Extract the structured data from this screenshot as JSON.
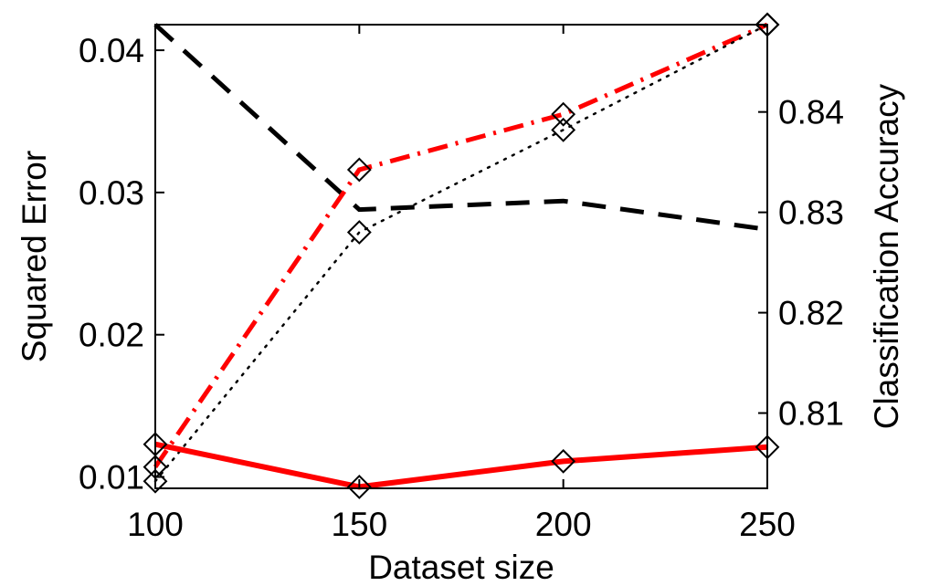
{
  "chart_data": {
    "type": "line",
    "title": "",
    "xlabel": "Dataset size",
    "ylabel_left": "Squared Error",
    "ylabel_right": "Classification Accuracy",
    "x": [
      100,
      150,
      200,
      250
    ],
    "xlim": [
      100,
      250
    ],
    "ylim_left": [
      0.0092,
      0.0418
    ],
    "ylim_right": [
      0.8025,
      0.8487
    ],
    "xticks": [
      "100",
      "150",
      "200",
      "250"
    ],
    "yticks_left": [
      "0.01",
      "0.02",
      "0.03",
      "0.04"
    ],
    "yticks_right": [
      "0.81",
      "0.82",
      "0.83",
      "0.84"
    ],
    "grid": false,
    "series": [
      {
        "axis": "left",
        "color": "#000000",
        "dash": "dashed",
        "marker": "none",
        "values": [
          0.0418,
          0.0288,
          0.0294,
          0.0274
        ]
      },
      {
        "axis": "left",
        "color": "#ff0000",
        "dash": "dashdot",
        "marker": "diamond",
        "values": [
          0.0107,
          0.0316,
          0.0355,
          0.0418
        ]
      },
      {
        "axis": "left",
        "color": "#000000",
        "dash": "dotted",
        "marker": "diamond",
        "values": [
          0.0097,
          0.0272,
          0.0344,
          0.0418
        ]
      },
      {
        "axis": "left",
        "color": "#ff0000",
        "dash": "solid",
        "marker": "diamond",
        "values": [
          0.0123,
          0.0093,
          0.0111,
          0.0121
        ]
      }
    ]
  }
}
